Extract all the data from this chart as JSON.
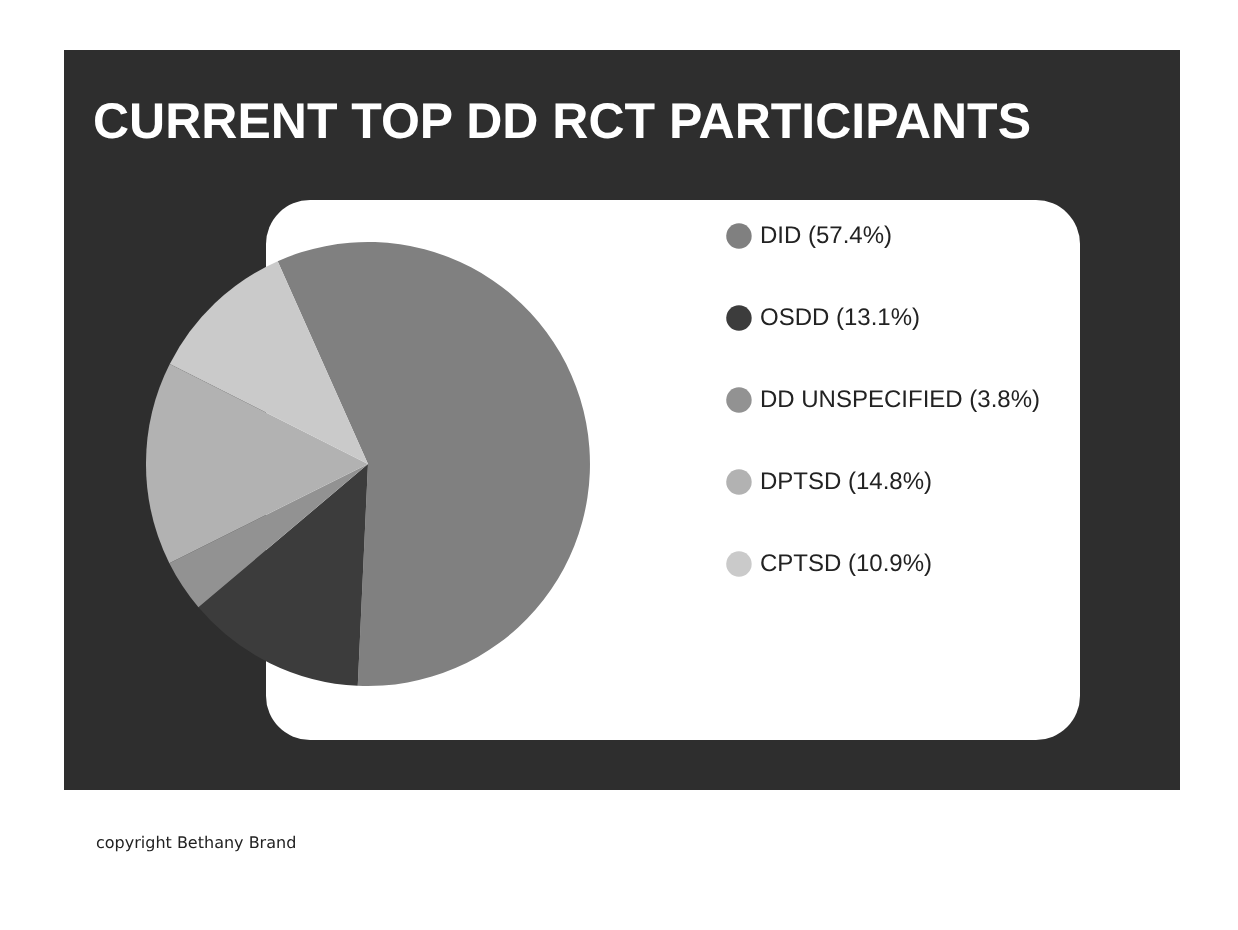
{
  "chart_data": {
    "type": "pie",
    "title": "CURRENT TOP DD RCT PARTICIPANTS",
    "categories": [
      "DID (57.4%)",
      "OSDD (13.1%)",
      "DD UNSPECIFIED (3.8%)",
      "DPTSD (14.8%)",
      "CPTSD (10.9%)"
    ],
    "values": [
      57.4,
      13.1,
      3.8,
      14.8,
      10.9
    ],
    "colors": [
      "#808080",
      "#3c3c3c",
      "#929292",
      "#b2b2b2",
      "#cacaca"
    ],
    "legend": "right",
    "annotations": [
      "copyright Bethany Brand"
    ]
  }
}
